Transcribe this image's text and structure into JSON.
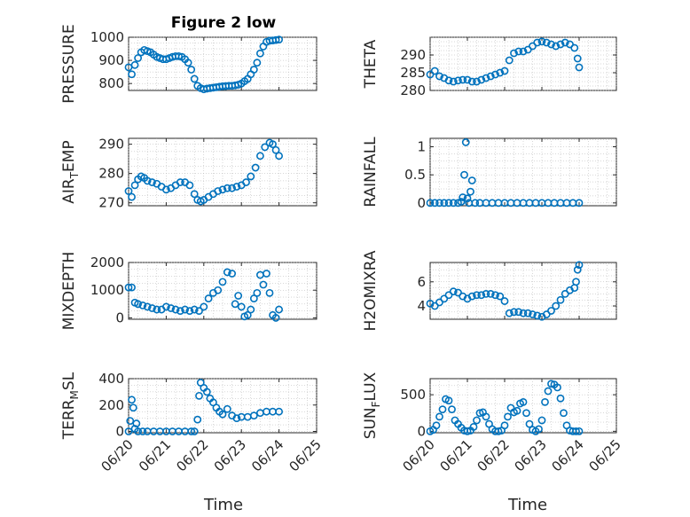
{
  "figure": {
    "title": "Figure 2 low",
    "xlabel": "Time"
  },
  "colors": {
    "marker": "#0072BD",
    "axes": "#262626",
    "background": "#ffffff"
  },
  "x_ticks": [
    "06/20",
    "06/21",
    "06/22",
    "06/23",
    "06/24",
    "06/25"
  ],
  "chart_data": [
    {
      "type": "scatter",
      "ylabel": "PRESSURE",
      "ylabel_sub": null,
      "ylim": [
        770,
        1000
      ],
      "yticks": [
        800,
        900,
        1000
      ],
      "xlim": [
        "06/20",
        "06/25"
      ],
      "grid": true,
      "series": [
        {
          "x": [
            "06/20 00:00",
            "06/20 02:00",
            "06/20 04:00",
            "06/20 06:00",
            "06/20 08:00",
            "06/20 10:00",
            "06/20 12:00",
            "06/20 14:00",
            "06/20 16:00",
            "06/20 18:00",
            "06/20 20:00",
            "06/20 22:00",
            "06/21 00:00",
            "06/21 02:00",
            "06/21 04:00",
            "06/21 06:00",
            "06/21 08:00",
            "06/21 10:00",
            "06/21 12:00",
            "06/21 14:00",
            "06/21 16:00",
            "06/21 18:00",
            "06/21 20:00",
            "06/21 22:00",
            "06/22 00:00",
            "06/22 02:00",
            "06/22 04:00",
            "06/22 06:00",
            "06/22 08:00",
            "06/22 10:00",
            "06/22 12:00",
            "06/22 14:00",
            "06/22 16:00",
            "06/22 18:00",
            "06/22 20:00",
            "06/22 22:00",
            "06/23 00:00",
            "06/23 02:00",
            "06/23 04:00",
            "06/23 06:00",
            "06/23 08:00",
            "06/23 10:00",
            "06/23 12:00",
            "06/23 14:00",
            "06/23 16:00",
            "06/23 18:00",
            "06/23 20:00",
            "06/23 22:00",
            "06/24 00:00"
          ],
          "y": [
            870,
            840,
            880,
            910,
            935,
            945,
            940,
            935,
            925,
            915,
            910,
            905,
            905,
            910,
            915,
            918,
            918,
            915,
            905,
            890,
            860,
            820,
            790,
            780,
            775,
            778,
            780,
            782,
            784,
            786,
            788,
            789,
            790,
            790,
            792,
            795,
            800,
            810,
            820,
            840,
            860,
            890,
            930,
            960,
            980,
            985,
            986,
            988,
            990
          ]
        }
      ]
    },
    {
      "type": "scatter",
      "ylabel": "THETA",
      "ylabel_sub": null,
      "ylim": [
        280,
        295
      ],
      "yticks": [
        280,
        285,
        290
      ],
      "xlim": [
        "06/20",
        "06/25"
      ],
      "grid": true,
      "series": [
        {
          "x": [
            "06/20 00:00",
            "06/20 03:00",
            "06/20 06:00",
            "06/20 09:00",
            "06/20 12:00",
            "06/20 15:00",
            "06/20 18:00",
            "06/20 21:00",
            "06/21 00:00",
            "06/21 03:00",
            "06/21 06:00",
            "06/21 09:00",
            "06/21 12:00",
            "06/21 15:00",
            "06/21 18:00",
            "06/21 21:00",
            "06/22 00:00",
            "06/22 03:00",
            "06/22 06:00",
            "06/22 09:00",
            "06/22 12:00",
            "06/22 15:00",
            "06/22 18:00",
            "06/22 21:00",
            "06/23 00:00",
            "06/23 03:00",
            "06/23 06:00",
            "06/23 09:00",
            "06/23 12:00",
            "06/23 15:00",
            "06/23 18:00",
            "06/23 21:00",
            "06/23 23:00",
            "06/24 00:00"
          ],
          "y": [
            284.5,
            285.5,
            284.0,
            283.5,
            282.8,
            282.5,
            282.8,
            283.0,
            283.0,
            282.5,
            282.5,
            283.0,
            283.5,
            284.0,
            284.5,
            285.0,
            285.5,
            288.5,
            290.5,
            291.0,
            291.0,
            291.5,
            292.5,
            293.5,
            293.8,
            293.5,
            293.0,
            292.5,
            293.0,
            293.5,
            293.0,
            292.0,
            289.0,
            286.5
          ]
        }
      ]
    },
    {
      "type": "scatter",
      "ylabel": "AIR",
      "ylabel_sub": "T",
      "ylabel_rest": "EMP",
      "ylim": [
        269,
        292
      ],
      "yticks": [
        270,
        280,
        290
      ],
      "xlim": [
        "06/20",
        "06/25"
      ],
      "grid": true,
      "series": [
        {
          "x": [
            "06/20 00:00",
            "06/20 02:00",
            "06/20 04:00",
            "06/20 06:00",
            "06/20 08:00",
            "06/20 10:00",
            "06/20 12:00",
            "06/20 15:00",
            "06/20 18:00",
            "06/20 21:00",
            "06/21 00:00",
            "06/21 03:00",
            "06/21 06:00",
            "06/21 09:00",
            "06/21 12:00",
            "06/21 15:00",
            "06/21 18:00",
            "06/21 20:00",
            "06/21 22:00",
            "06/22 00:00",
            "06/22 03:00",
            "06/22 06:00",
            "06/22 09:00",
            "06/22 12:00",
            "06/22 15:00",
            "06/22 18:00",
            "06/22 21:00",
            "06/23 00:00",
            "06/23 03:00",
            "06/23 06:00",
            "06/23 09:00",
            "06/23 12:00",
            "06/23 15:00",
            "06/23 18:00",
            "06/23 20:00",
            "06/23 22:00",
            "06/24 00:00"
          ],
          "y": [
            274,
            272,
            276,
            278,
            279,
            278.5,
            277.5,
            277,
            276.5,
            275.5,
            274.5,
            275,
            276,
            277,
            277,
            276,
            273,
            271,
            270.5,
            271,
            272,
            273,
            274,
            274.5,
            275,
            275,
            275.5,
            276,
            277,
            279,
            282,
            286,
            289,
            290.5,
            290,
            288,
            286
          ]
        }
      ]
    },
    {
      "type": "scatter",
      "ylabel": "RAINFALL",
      "ylabel_sub": null,
      "ylim": [
        -0.05,
        1.15
      ],
      "yticks": [
        0,
        0.5,
        1
      ],
      "ytick_labels": [
        "0",
        "0.5",
        "1"
      ],
      "xlim": [
        "06/20",
        "06/25"
      ],
      "grid": true,
      "series": [
        {
          "x": [
            "06/20 00:00",
            "06/20 03:00",
            "06/20 06:00",
            "06/20 09:00",
            "06/20 12:00",
            "06/20 15:00",
            "06/20 18:00",
            "06/20 20:00",
            "06/20 21:00",
            "06/20 22:00",
            "06/20 23:00",
            "06/21 00:00",
            "06/21 01:00",
            "06/21 02:00",
            "06/21 03:00",
            "06/21 05:00",
            "06/21 08:00",
            "06/21 12:00",
            "06/21 16:00",
            "06/21 20:00",
            "06/22 00:00",
            "06/22 04:00",
            "06/22 08:00",
            "06/22 12:00",
            "06/22 16:00",
            "06/22 20:00",
            "06/23 00:00",
            "06/23 04:00",
            "06/23 08:00",
            "06/23 12:00",
            "06/23 16:00",
            "06/23 20:00",
            "06/24 00:00"
          ],
          "y": [
            0,
            0,
            0,
            0,
            0,
            0,
            0,
            0.02,
            0.1,
            0.5,
            1.08,
            0.08,
            0,
            0.2,
            0.4,
            0,
            0,
            0,
            0,
            0,
            0,
            0,
            0,
            0,
            0,
            0,
            0,
            0,
            0,
            0,
            0,
            0,
            0
          ]
        }
      ]
    },
    {
      "type": "scatter",
      "ylabel": "MIXDEPTH",
      "ylabel_sub": null,
      "ylim": [
        -50,
        2000
      ],
      "yticks": [
        0,
        1000,
        2000
      ],
      "xlim": [
        "06/20",
        "06/25"
      ],
      "grid": true,
      "series": [
        {
          "x": [
            "06/20 00:00",
            "06/20 02:00",
            "06/20 04:00",
            "06/20 06:00",
            "06/20 09:00",
            "06/20 12:00",
            "06/20 15:00",
            "06/20 18:00",
            "06/20 21:00",
            "06/21 00:00",
            "06/21 03:00",
            "06/21 06:00",
            "06/21 09:00",
            "06/21 12:00",
            "06/21 15:00",
            "06/21 18:00",
            "06/21 21:00",
            "06/22 00:00",
            "06/22 03:00",
            "06/22 06:00",
            "06/22 09:00",
            "06/22 12:00",
            "06/22 15:00",
            "06/22 18:00",
            "06/22 20:00",
            "06/22 22:00",
            "06/23 00:00",
            "06/23 02:00",
            "06/23 04:00",
            "06/23 06:00",
            "06/23 08:00",
            "06/23 10:00",
            "06/23 12:00",
            "06/23 14:00",
            "06/23 16:00",
            "06/23 18:00",
            "06/23 20:00",
            "06/23 22:00",
            "06/24 00:00"
          ],
          "y": [
            1100,
            1100,
            550,
            500,
            450,
            400,
            350,
            300,
            300,
            400,
            350,
            300,
            250,
            300,
            250,
            300,
            250,
            400,
            700,
            900,
            1000,
            1300,
            1650,
            1600,
            500,
            800,
            400,
            50,
            100,
            300,
            700,
            900,
            1550,
            1200,
            1600,
            900,
            100,
            0,
            300
          ]
        }
      ]
    },
    {
      "type": "scatter",
      "ylabel": "H2OMIXRA",
      "ylabel_sub": null,
      "ylim": [
        2.9,
        7.6
      ],
      "yticks": [
        4,
        6
      ],
      "xlim": [
        "06/20",
        "06/25"
      ],
      "grid": true,
      "series": [
        {
          "x": [
            "06/20 00:00",
            "06/20 03:00",
            "06/20 06:00",
            "06/20 09:00",
            "06/20 12:00",
            "06/20 15:00",
            "06/20 18:00",
            "06/20 21:00",
            "06/21 00:00",
            "06/21 03:00",
            "06/21 06:00",
            "06/21 09:00",
            "06/21 12:00",
            "06/21 15:00",
            "06/21 18:00",
            "06/21 21:00",
            "06/22 00:00",
            "06/22 03:00",
            "06/22 06:00",
            "06/22 09:00",
            "06/22 12:00",
            "06/22 15:00",
            "06/22 18:00",
            "06/22 21:00",
            "06/23 00:00",
            "06/23 03:00",
            "06/23 06:00",
            "06/23 09:00",
            "06/23 12:00",
            "06/23 15:00",
            "06/23 18:00",
            "06/23 21:00",
            "06/23 22:00",
            "06/23 23:00",
            "06/24 00:00"
          ],
          "y": [
            4.2,
            4.0,
            4.3,
            4.6,
            4.9,
            5.2,
            5.1,
            4.8,
            4.6,
            4.8,
            4.9,
            4.9,
            5.0,
            5.0,
            4.9,
            4.8,
            4.4,
            3.4,
            3.5,
            3.5,
            3.4,
            3.4,
            3.3,
            3.2,
            3.1,
            3.3,
            3.6,
            4.0,
            4.5,
            5.0,
            5.3,
            5.5,
            6.0,
            7.0,
            7.4
          ]
        }
      ]
    },
    {
      "type": "scatter",
      "ylabel": "TERR",
      "ylabel_sub": "M",
      "ylabel_rest": "SL",
      "ylim": [
        -10,
        400
      ],
      "yticks": [
        0,
        200,
        400
      ],
      "xlim": [
        "06/20",
        "06/25"
      ],
      "grid": true,
      "series": [
        {
          "x": [
            "06/20 00:00",
            "06/20 01:00",
            "06/20 02:00",
            "06/20 03:00",
            "06/20 04:00",
            "06/20 05:00",
            "06/20 06:00",
            "06/20 09:00",
            "06/20 12:00",
            "06/20 16:00",
            "06/20 20:00",
            "06/21 00:00",
            "06/21 04:00",
            "06/21 08:00",
            "06/21 12:00",
            "06/21 16:00",
            "06/21 18:00",
            "06/21 20:00",
            "06/21 21:00",
            "06/21 22:00",
            "06/22 00:00",
            "06/22 02:00",
            "06/22 04:00",
            "06/22 06:00",
            "06/22 08:00",
            "06/22 10:00",
            "06/22 12:00",
            "06/22 15:00",
            "06/22 18:00",
            "06/22 21:00",
            "06/23 00:00",
            "06/23 04:00",
            "06/23 08:00",
            "06/23 12:00",
            "06/23 16:00",
            "06/23 20:00",
            "06/24 00:00"
          ],
          "y": [
            0,
            80,
            240,
            180,
            20,
            60,
            0,
            0,
            0,
            0,
            0,
            0,
            0,
            0,
            0,
            0,
            0,
            90,
            270,
            370,
            330,
            300,
            250,
            220,
            180,
            150,
            130,
            170,
            120,
            100,
            110,
            110,
            120,
            140,
            150,
            150,
            150
          ]
        }
      ]
    },
    {
      "type": "scatter",
      "ylabel": "SUN",
      "ylabel_sub": "F",
      "ylabel_rest": "LUX",
      "ylim": [
        -20,
        720
      ],
      "yticks": [
        0,
        500
      ],
      "xlim": [
        "06/20",
        "06/25"
      ],
      "grid": true,
      "series": [
        {
          "x": [
            "06/20 00:00",
            "06/20 02:00",
            "06/20 04:00",
            "06/20 06:00",
            "06/20 08:00",
            "06/20 10:00",
            "06/20 12:00",
            "06/20 14:00",
            "06/20 16:00",
            "06/20 18:00",
            "06/20 20:00",
            "06/20 22:00",
            "06/21 00:00",
            "06/21 02:00",
            "06/21 04:00",
            "06/21 06:00",
            "06/21 08:00",
            "06/21 10:00",
            "06/21 12:00",
            "06/21 14:00",
            "06/21 16:00",
            "06/21 18:00",
            "06/21 20:00",
            "06/21 22:00",
            "06/22 00:00",
            "06/22 02:00",
            "06/22 04:00",
            "06/22 06:00",
            "06/22 08:00",
            "06/22 10:00",
            "06/22 12:00",
            "06/22 14:00",
            "06/22 16:00",
            "06/22 18:00",
            "06/22 20:00",
            "06/22 22:00",
            "06/23 00:00",
            "06/23 02:00",
            "06/23 04:00",
            "06/23 06:00",
            "06/23 08:00",
            "06/23 10:00",
            "06/23 12:00",
            "06/23 14:00",
            "06/23 16:00",
            "06/23 18:00",
            "06/23 20:00",
            "06/23 22:00",
            "06/24 00:00"
          ],
          "y": [
            0,
            20,
            80,
            200,
            300,
            440,
            420,
            300,
            150,
            100,
            50,
            10,
            0,
            10,
            60,
            150,
            250,
            260,
            200,
            100,
            30,
            0,
            0,
            10,
            80,
            200,
            320,
            260,
            280,
            380,
            400,
            250,
            100,
            20,
            0,
            30,
            150,
            400,
            550,
            650,
            640,
            600,
            450,
            250,
            80,
            10,
            0,
            0,
            0
          ]
        }
      ]
    }
  ]
}
